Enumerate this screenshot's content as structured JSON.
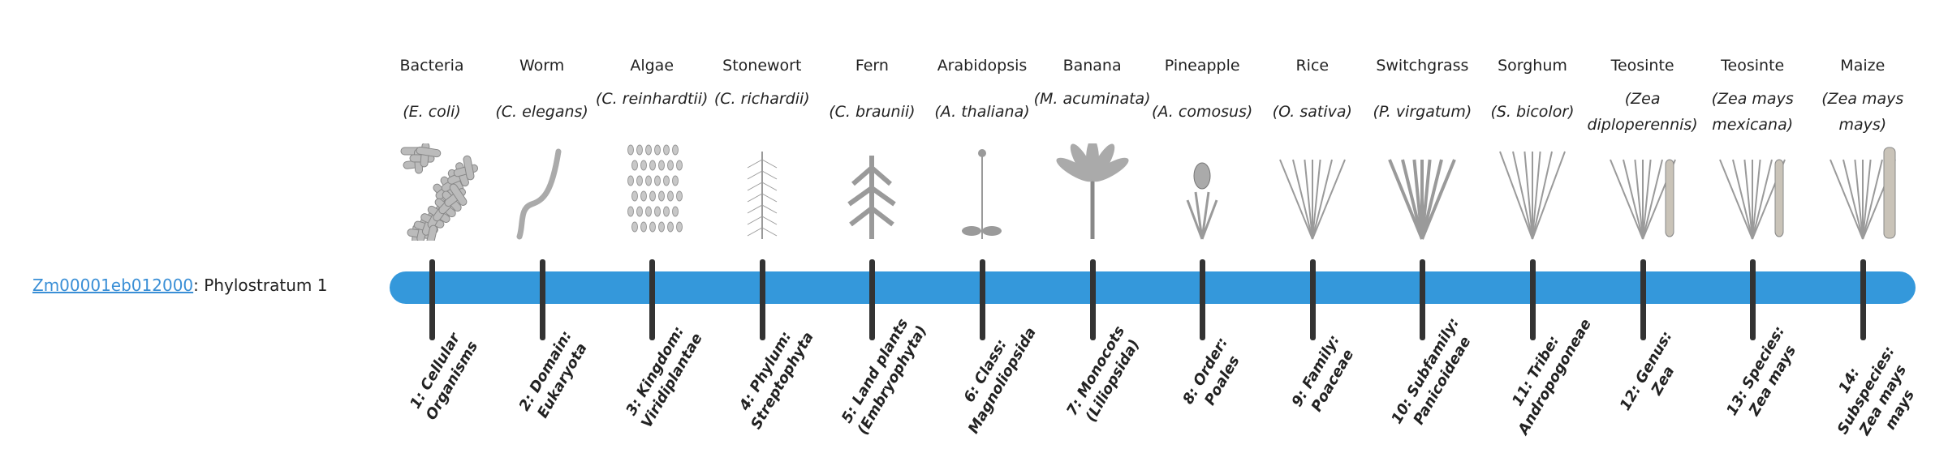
{
  "gene": {
    "id": "Zm00001eb012000",
    "separator": ": ",
    "stratum": "Phylostratum 1"
  },
  "colors": {
    "bar": "#3498db",
    "tick": "#333333",
    "link": "#3a8fd6",
    "illustration": "#9a9a9a"
  },
  "strata": [
    {
      "common": "Bacteria",
      "species": "(E. coli)",
      "rank": "1: Cellular Organisms",
      "icon": "bacteria-icon"
    },
    {
      "common": "Worm",
      "species": "(C. elegans)",
      "rank": "2: Domain: Eukaryota",
      "icon": "worm-icon"
    },
    {
      "common": "Algae",
      "species": "(C. reinhardtii)",
      "rank": "3: Kingdom: Viridiplantae",
      "icon": "algae-icon"
    },
    {
      "common": "Stonewort",
      "species": "(C. richardii)",
      "rank": "4: Phylum: Streptophyta",
      "icon": "stonewort-icon"
    },
    {
      "common": "Fern",
      "species": "(C. braunii)",
      "rank": "5: Land plants (Embryophyta)",
      "icon": "fern-icon"
    },
    {
      "common": "Arabidopsis",
      "species": "(A. thaliana)",
      "rank": "6: Class: Magnoliopsida",
      "icon": "arabidopsis-icon"
    },
    {
      "common": "Banana",
      "species": "(M. acuminata)",
      "rank": "7: Monocots (Liliopsida)",
      "icon": "banana-icon"
    },
    {
      "common": "Pineapple",
      "species": "(A. comosus)",
      "rank": "8: Order: Poales",
      "icon": "pineapple-icon"
    },
    {
      "common": "Rice",
      "species": "(O. sativa)",
      "rank": "9: Family: Poaceae",
      "icon": "rice-icon"
    },
    {
      "common": "Switchgrass",
      "species": "(P. virgatum)",
      "rank": "10: Subfamily: Panicoideae",
      "icon": "switchgrass-icon"
    },
    {
      "common": "Sorghum",
      "species": "(S. bicolor)",
      "rank": "11: Tribe: Andropogoneae",
      "icon": "sorghum-icon"
    },
    {
      "common": "Teosinte",
      "species": "(Zea diploperennis)",
      "rank": "12: Genus: Zea",
      "icon": "teosinte-icon"
    },
    {
      "common": "Teosinte",
      "species": "(Zea mays mexicana)",
      "rank": "13: Species: Zea mays",
      "icon": "teosinte-mexicana-icon"
    },
    {
      "common": "Maize",
      "species": "(Zea mays mays)",
      "rank": "14: Subspecies: Zea mays mays",
      "icon": "maize-icon"
    }
  ]
}
